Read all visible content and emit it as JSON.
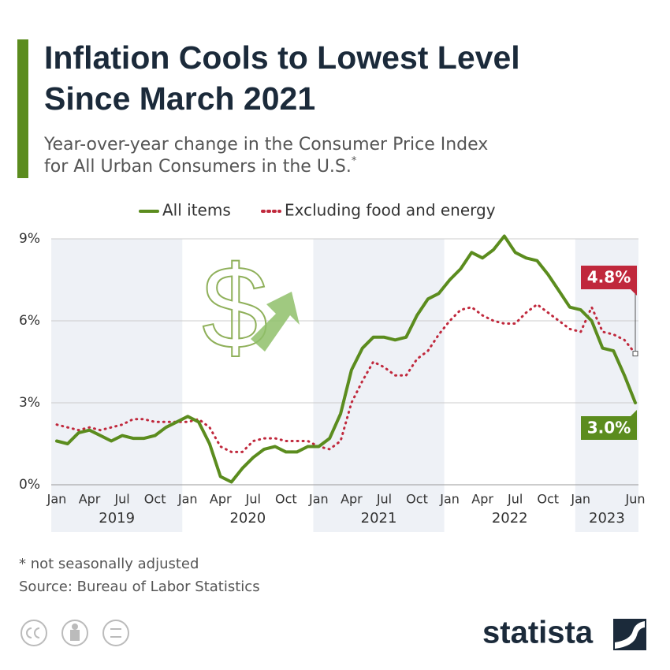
{
  "chart_data": {
    "type": "line",
    "title_lines": [
      "Inflation Cools to Lowest Level",
      "Since March 2021"
    ],
    "subtitle_lines": [
      "Year-over-year change in the Consumer Price Index",
      "for All Urban Consumers in the U.S."
    ],
    "subtitle_mark": "*",
    "categories": [
      "Jan",
      null,
      null,
      "Apr",
      null,
      null,
      "Jul",
      null,
      null,
      "Oct",
      null,
      null,
      "Jan",
      null,
      null,
      "Apr",
      null,
      null,
      "Jul",
      null,
      null,
      "Oct",
      null,
      null,
      "Jan",
      null,
      null,
      "Apr",
      null,
      null,
      "Jul",
      null,
      null,
      "Oct",
      null,
      null,
      "Jan",
      null,
      null,
      "Apr",
      null,
      null,
      "Jul",
      null,
      null,
      "Oct",
      null,
      null,
      "Jan",
      null,
      null,
      null,
      null,
      "Jun"
    ],
    "years": [
      "2019",
      "2020",
      "2021",
      "2022",
      "2023"
    ],
    "series": [
      {
        "name": "All items",
        "color": "#5b8c1e",
        "style": "solid",
        "values": [
          1.6,
          1.5,
          1.9,
          2.0,
          1.8,
          1.6,
          1.8,
          1.7,
          1.7,
          1.8,
          2.1,
          2.3,
          2.5,
          2.3,
          1.5,
          0.3,
          0.1,
          0.6,
          1.0,
          1.3,
          1.4,
          1.2,
          1.2,
          1.4,
          1.4,
          1.7,
          2.6,
          4.2,
          5.0,
          5.4,
          5.4,
          5.3,
          5.4,
          6.2,
          6.8,
          7.0,
          7.5,
          7.9,
          8.5,
          8.3,
          8.6,
          9.1,
          8.5,
          8.3,
          8.2,
          7.7,
          7.1,
          6.5,
          6.4,
          6.0,
          5.0,
          4.9,
          4.0,
          3.0
        ],
        "value_labels": [
          null,
          null,
          null,
          null,
          null,
          null,
          null,
          null,
          null,
          null,
          null,
          null,
          null,
          null,
          null,
          null,
          null,
          null,
          null,
          null,
          null,
          null,
          null,
          null,
          null,
          null,
          null,
          null,
          null,
          null,
          null,
          null,
          null,
          null,
          null,
          null,
          null,
          null,
          null,
          null,
          null,
          null,
          null,
          null,
          null,
          null,
          null,
          null,
          null,
          null,
          null,
          null,
          null,
          "3.0%"
        ]
      },
      {
        "name": "Excluding food and energy",
        "color": "#c0283c",
        "style": "dotted",
        "values": [
          2.2,
          2.1,
          2.0,
          2.1,
          2.0,
          2.1,
          2.2,
          2.4,
          2.4,
          2.3,
          2.3,
          2.3,
          2.3,
          2.4,
          2.1,
          1.4,
          1.2,
          1.2,
          1.6,
          1.7,
          1.7,
          1.6,
          1.6,
          1.6,
          1.4,
          1.3,
          1.6,
          3.0,
          3.8,
          4.5,
          4.3,
          4.0,
          4.0,
          4.6,
          4.9,
          5.5,
          6.0,
          6.4,
          6.5,
          6.2,
          6.0,
          5.9,
          5.9,
          6.3,
          6.6,
          6.3,
          6.0,
          5.7,
          5.6,
          6.5,
          5.6,
          5.5,
          5.3,
          4.8
        ],
        "value_labels": [
          null,
          null,
          null,
          null,
          null,
          null,
          null,
          null,
          null,
          null,
          null,
          null,
          null,
          null,
          null,
          null,
          null,
          null,
          null,
          null,
          null,
          null,
          null,
          null,
          null,
          null,
          null,
          null,
          null,
          null,
          null,
          null,
          null,
          null,
          null,
          null,
          null,
          null,
          null,
          null,
          null,
          null,
          null,
          null,
          null,
          null,
          null,
          null,
          null,
          null,
          null,
          null,
          null,
          "4.8%"
        ]
      }
    ],
    "ylim": [
      0,
      9
    ],
    "yticks": [
      {
        "value": 0,
        "label": "0%"
      },
      {
        "value": 3,
        "label": "3%"
      },
      {
        "value": 6,
        "label": "6%"
      },
      {
        "value": 9,
        "label": "9%"
      }
    ],
    "grid": true,
    "legend": "top",
    "notes": [
      "* not seasonally adjusted",
      "Source: Bureau of Labor Statistics"
    ],
    "brand": "statista"
  }
}
